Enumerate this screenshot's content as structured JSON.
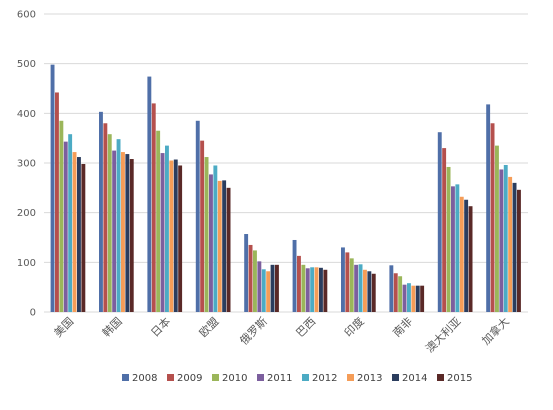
{
  "chart_data": {
    "type": "bar",
    "categories": [
      "美国",
      "韩国",
      "日本",
      "欧盟",
      "俄罗斯",
      "巴西",
      "印度",
      "南非",
      "澳大利亚",
      "加拿大"
    ],
    "series": [
      {
        "name": "2008",
        "color": "#4f6fa8",
        "values": [
          498,
          403,
          474,
          385,
          157,
          145,
          130,
          94,
          362,
          418
        ]
      },
      {
        "name": "2009",
        "color": "#b5504d",
        "values": [
          442,
          380,
          420,
          345,
          135,
          113,
          120,
          78,
          330,
          380
        ]
      },
      {
        "name": "2010",
        "color": "#9bb65a",
        "values": [
          385,
          358,
          365,
          312,
          124,
          95,
          108,
          72,
          292,
          335
        ]
      },
      {
        "name": "2011",
        "color": "#7c5f9e",
        "values": [
          343,
          325,
          320,
          277,
          102,
          88,
          95,
          55,
          253,
          287
        ]
      },
      {
        "name": "2012",
        "color": "#4cabc4",
        "values": [
          358,
          348,
          335,
          295,
          86,
          90,
          96,
          58,
          257,
          296
        ]
      },
      {
        "name": "2013",
        "color": "#f59d58",
        "values": [
          322,
          322,
          305,
          264,
          82,
          90,
          85,
          53,
          232,
          272
        ]
      },
      {
        "name": "2014",
        "color": "#2b3d5e",
        "values": [
          312,
          318,
          307,
          265,
          95,
          89,
          82,
          53,
          226,
          260
        ]
      },
      {
        "name": "2015",
        "color": "#5a2927",
        "values": [
          298,
          308,
          295,
          250,
          95,
          85,
          77,
          53,
          213,
          246
        ]
      }
    ],
    "yticks": [
      0,
      100,
      200,
      300,
      400,
      500,
      600
    ],
    "ylim": [
      0,
      600
    ],
    "title": "",
    "xlabel": "",
    "ylabel": "",
    "grid": true,
    "legend": "bottom"
  }
}
